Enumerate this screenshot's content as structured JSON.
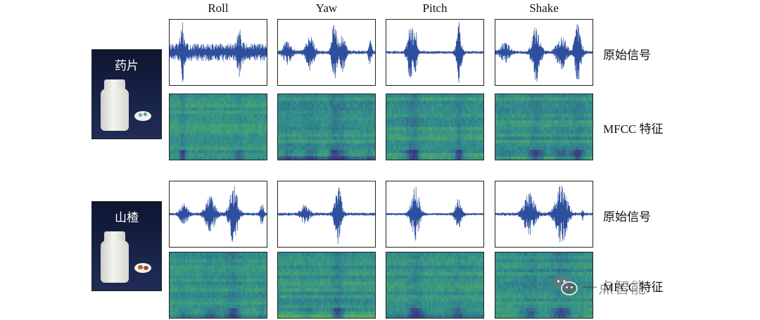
{
  "columns": [
    "Roll",
    "Yaw",
    "Pitch",
    "Shake"
  ],
  "row_labels": {
    "signal": "原始信号",
    "mfcc": "MFCC 特征"
  },
  "objects": [
    {
      "label": "药片",
      "dish_color": "#5db3a6"
    },
    {
      "label": "山楂",
      "dish_color": "#c4552e"
    }
  ],
  "watermark": {
    "text": "一点智能",
    "icon": "wechat-icon"
  },
  "colors": {
    "signal": "#2d4f9e",
    "mfcc_low": "#3a3a84",
    "mfcc_mid": "#2f8f8d",
    "mfcc_high": "#78c040",
    "photo_bg": "#1a2246"
  }
}
